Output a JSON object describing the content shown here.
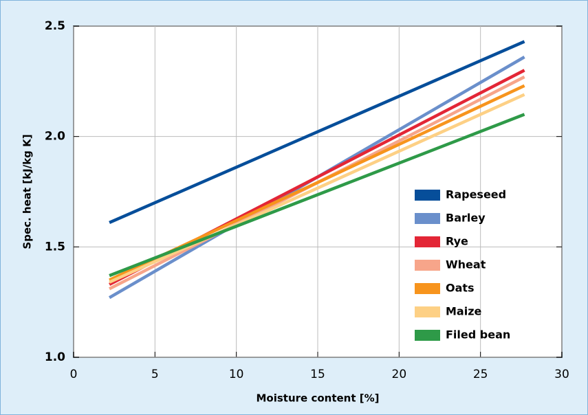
{
  "chart_data": {
    "type": "line",
    "xlabel": "Moisture content [%]",
    "ylabel": "Spec. heat [kJ/kg K]",
    "x": [
      2.2,
      27.7
    ],
    "series": [
      {
        "name": "Rapeseed",
        "color": "#064e9a",
        "values": [
          1.61,
          2.43
        ]
      },
      {
        "name": "Barley",
        "color": "#6a8fcb",
        "values": [
          1.27,
          2.36
        ]
      },
      {
        "name": "Rye",
        "color": "#e32636",
        "values": [
          1.33,
          2.3
        ]
      },
      {
        "name": "Wheat",
        "color": "#f7a58a",
        "values": [
          1.31,
          2.27
        ]
      },
      {
        "name": "Oats",
        "color": "#f7941d",
        "values": [
          1.35,
          2.23
        ]
      },
      {
        "name": "Maize",
        "color": "#fdd085",
        "values": [
          1.34,
          2.19
        ]
      },
      {
        "name": "Filed bean",
        "color": "#2e9a48",
        "values": [
          1.37,
          2.1
        ]
      }
    ],
    "xlim": [
      0,
      30
    ],
    "xticks": [
      0,
      5,
      10,
      15,
      20,
      25,
      30
    ],
    "ylim": [
      1.0,
      2.5
    ],
    "yticks": [
      {
        "value": 1.0,
        "label": "1.0"
      },
      {
        "value": 1.5,
        "label": "1.5"
      },
      {
        "value": 2.0,
        "label": "2.0"
      },
      {
        "value": 2.5,
        "label": "2.5"
      }
    ],
    "grid": true,
    "legend": "lower right"
  }
}
